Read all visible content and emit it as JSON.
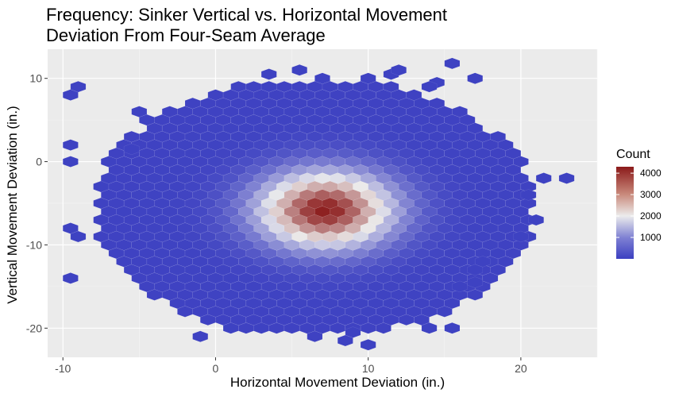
{
  "chart_data": {
    "type": "heatmap",
    "subtype": "hexbin",
    "title": "Frequency: Sinker Vertical vs. Horizontal Movement",
    "subtitle": "Deviation From Four-Seam Average",
    "xlabel": "Horizontal Movement Deviation (in.)",
    "ylabel": "Vertical Movement Deviation (in.)",
    "xlim": [
      -11,
      25
    ],
    "ylim": [
      -23.5,
      13.5
    ],
    "x_ticks": [
      -10,
      0,
      10,
      20
    ],
    "y_ticks": [
      10,
      0,
      -10,
      -20
    ],
    "grid": true,
    "legend": {
      "title": "Count",
      "position": "right",
      "ticks": [
        1000,
        2000,
        3000,
        4000
      ],
      "range": [
        0,
        4300
      ],
      "colors": {
        "low": "#3b3fc1",
        "mid": "#ececec",
        "high": "#8b1a1a"
      }
    },
    "density": {
      "peak_center": [
        7.2,
        -5.8
      ],
      "peak_count": 4200,
      "spread_sd": [
        2.9,
        3.0
      ]
    },
    "extent": {
      "center": [
        6.5,
        -5.5
      ],
      "radii": [
        14.5,
        15.5
      ]
    },
    "outlier_bins": [
      [
        -9.5,
        8
      ],
      [
        -9,
        9
      ],
      [
        -9.5,
        2
      ],
      [
        -9.5,
        0
      ],
      [
        -7,
        0
      ],
      [
        -7,
        -2
      ],
      [
        -7.5,
        -3
      ],
      [
        -9.5,
        -8
      ],
      [
        -9,
        -9
      ],
      [
        -9.5,
        -14
      ],
      [
        -6,
        -6
      ],
      [
        -5,
        6
      ],
      [
        -4.5,
        5
      ],
      [
        -5.5,
        1.5
      ],
      [
        3.5,
        10.5
      ],
      [
        5.5,
        11
      ],
      [
        3.5,
        9
      ],
      [
        7,
        10
      ],
      [
        10,
        10
      ],
      [
        11.5,
        10.5
      ],
      [
        12,
        11
      ],
      [
        15.5,
        11.8
      ],
      [
        17,
        10
      ],
      [
        14.5,
        9.5
      ],
      [
        14,
        9
      ],
      [
        13.5,
        7
      ],
      [
        21.5,
        -2
      ],
      [
        23,
        -2
      ],
      [
        20.5,
        -4
      ],
      [
        21,
        -7
      ],
      [
        20,
        -9
      ],
      [
        18.5,
        -11
      ],
      [
        17.5,
        -12
      ],
      [
        17,
        -13
      ],
      [
        17,
        -14.5
      ],
      [
        16,
        -15
      ],
      [
        15.5,
        -20
      ],
      [
        14,
        -20
      ],
      [
        9,
        -20.5
      ],
      [
        8.5,
        -21.5
      ],
      [
        10,
        -22
      ],
      [
        -1,
        -21
      ],
      [
        1,
        -20
      ],
      [
        3,
        -20
      ]
    ]
  }
}
